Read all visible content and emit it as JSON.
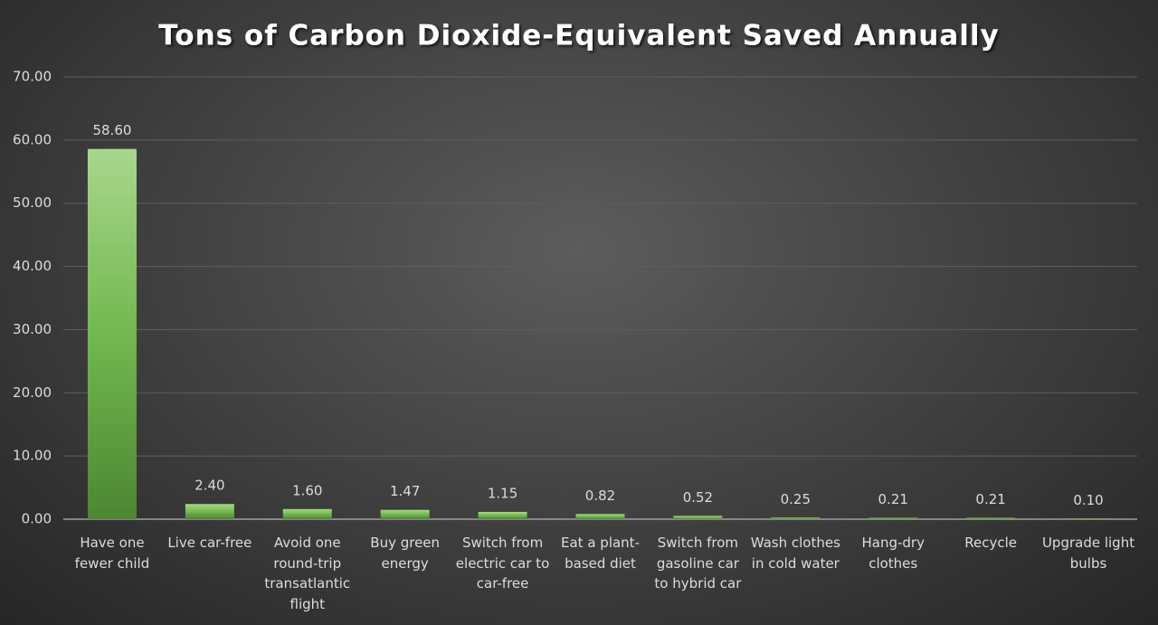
{
  "chart_data": {
    "type": "bar",
    "title": "Tons of Carbon Dioxide-Equivalent Saved Annually",
    "categories": [
      "Have one fewer child",
      "Live car-free",
      "Avoid one round-trip transatlantic flight",
      "Buy green energy",
      "Switch from electric car to car-free",
      "Eat a plant-based diet",
      "Switch from gasoline car to hybrid car",
      "Wash clothes in cold water",
      "Hang-dry clothes",
      "Recycle",
      "Upgrade light bulbs"
    ],
    "values": [
      58.6,
      2.4,
      1.6,
      1.47,
      1.15,
      0.82,
      0.52,
      0.25,
      0.21,
      0.21,
      0.1
    ],
    "value_labels": [
      "58.60",
      "2.40",
      "1.60",
      "1.47",
      "1.15",
      "0.82",
      "0.52",
      "0.25",
      "0.21",
      "0.21",
      "0.10"
    ],
    "color": "#72b84f",
    "ylim": [
      0,
      70
    ],
    "yticks": [
      {
        "value": 0,
        "label": "0.00"
      },
      {
        "value": 10,
        "label": "10.00"
      },
      {
        "value": 20,
        "label": "20.00"
      },
      {
        "value": 30,
        "label": "30.00"
      },
      {
        "value": 40,
        "label": "40.00"
      },
      {
        "value": 50,
        "label": "50.00"
      },
      {
        "value": 60,
        "label": "60.00"
      },
      {
        "value": 70,
        "label": "70.00"
      }
    ],
    "grid": true
  }
}
